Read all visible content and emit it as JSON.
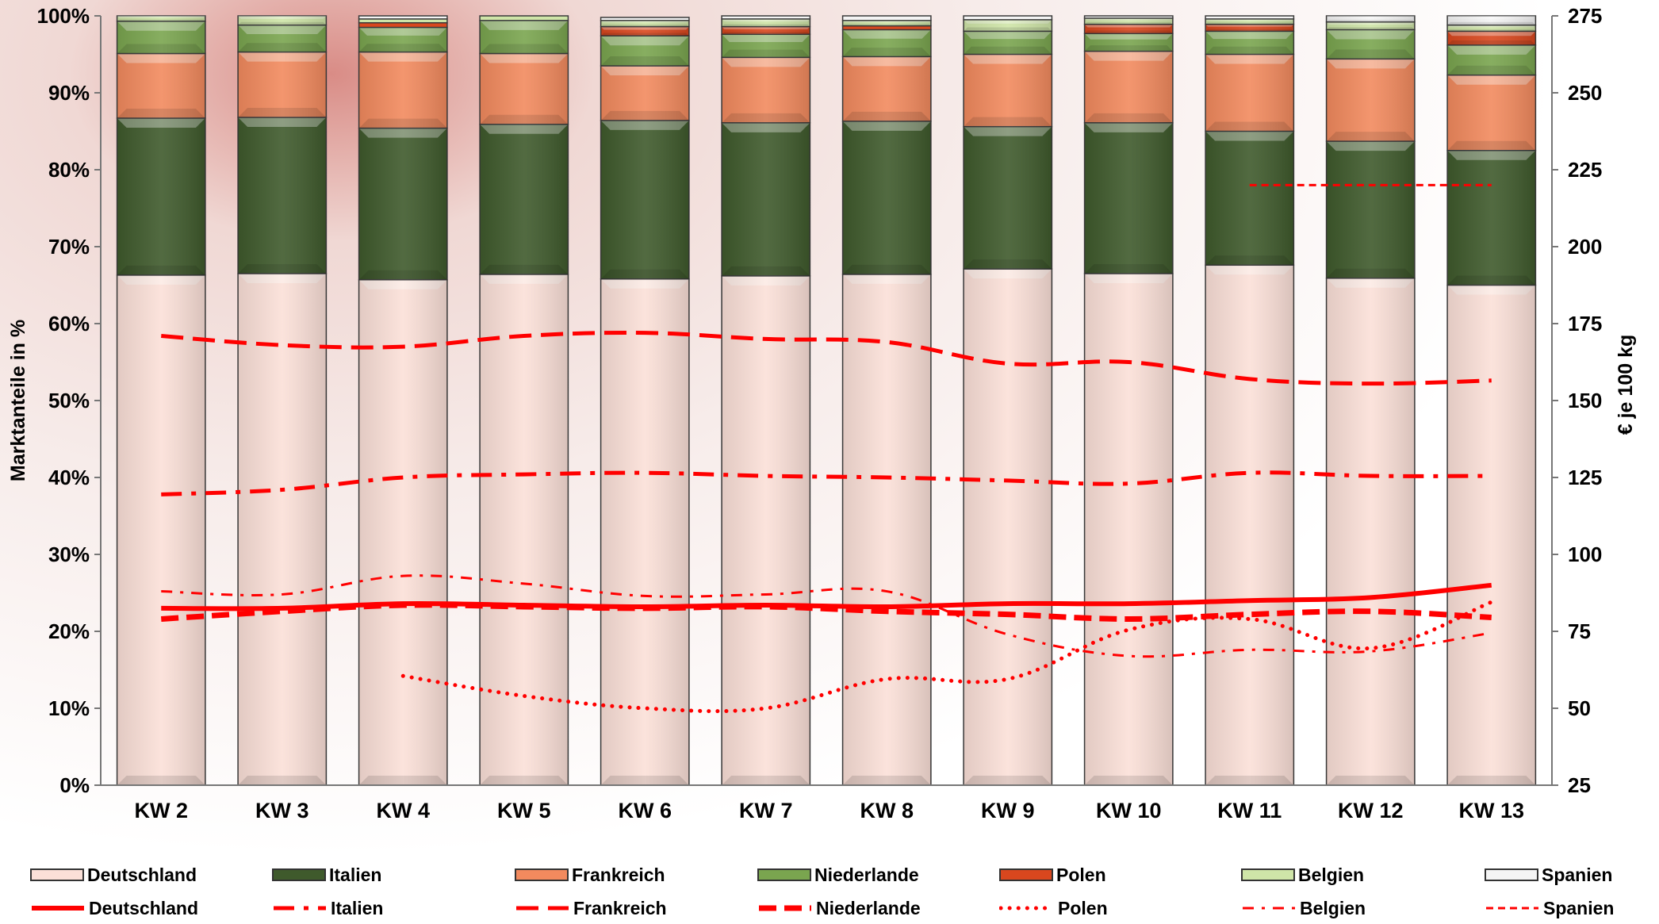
{
  "chart_data": {
    "type": "bar",
    "stacked": true,
    "percent_axis": true,
    "categories": [
      "KW 2",
      "KW 3",
      "KW 4",
      "KW 5",
      "KW 6",
      "KW 7",
      "KW 8",
      "KW 9",
      "KW 10",
      "KW 11",
      "KW 12",
      "KW 13"
    ],
    "ylabel_left": "Marktanteile in %",
    "ylabel_right": "€ je 100 kg",
    "yticks_left": [
      "0%",
      "10%",
      "20%",
      "30%",
      "40%",
      "50%",
      "60%",
      "70%",
      "80%",
      "90%",
      "100%"
    ],
    "yticks_right": [
      "25",
      "50",
      "75",
      "100",
      "125",
      "150",
      "175",
      "200",
      "225",
      "250",
      "275"
    ],
    "ylim_left": [
      0,
      100
    ],
    "ylim_right": [
      25,
      275
    ],
    "bar_series": [
      {
        "name": "Deutschland",
        "color": "#fbe0d8",
        "values": [
          66.3,
          66.5,
          65.7,
          66.4,
          65.8,
          66.2,
          66.4,
          67.1,
          66.5,
          67.6,
          65.9,
          65.0
        ]
      },
      {
        "name": "Italien",
        "color": "#3f5a2c",
        "values": [
          20.4,
          20.3,
          19.7,
          19.5,
          20.6,
          19.9,
          19.9,
          18.5,
          19.6,
          17.4,
          17.8,
          17.5
        ]
      },
      {
        "name": "Frankreich",
        "color": "#f28a5e",
        "values": [
          8.4,
          8.5,
          9.9,
          9.2,
          7.1,
          8.5,
          8.4,
          9.4,
          9.3,
          10.0,
          10.7,
          9.8
        ]
      },
      {
        "name": "Niederlande",
        "color": "#7aa54f",
        "values": [
          4.2,
          3.5,
          3.2,
          4.3,
          3.9,
          3.0,
          3.5,
          3.0,
          2.3,
          3.0,
          3.8,
          3.9
        ]
      },
      {
        "name": "Polen",
        "color": "#d9471e",
        "values": [
          0,
          0,
          0.6,
          0,
          1.2,
          1.0,
          0.5,
          0,
          1.2,
          0.9,
          0,
          1.8
        ]
      },
      {
        "name": "Belgien",
        "color": "#cfe5a8",
        "values": [
          0.7,
          1.2,
          0.5,
          0.6,
          0.8,
          1.0,
          0.7,
          1.5,
          0.8,
          0.7,
          1.0,
          0.8
        ]
      },
      {
        "name": "Spanien",
        "color": "#f4f4f4",
        "values": [
          0,
          0,
          0.4,
          0,
          0.4,
          0.4,
          0.6,
          0.5,
          0.3,
          0.4,
          0.8,
          1.2
        ]
      }
    ],
    "line_series": [
      {
        "name": "Deutschland",
        "dash": "solid",
        "width": 6,
        "values": [
          82.5,
          82.5,
          84,
          83.5,
          83,
          83.5,
          83,
          84,
          84,
          85,
          86,
          90
        ]
      },
      {
        "name": "Italien",
        "dash": "longdashdot",
        "width": 5,
        "values": [
          119.5,
          121,
          125,
          126,
          126.5,
          125.5,
          125,
          124,
          123,
          126.5,
          125.5,
          125.5
        ]
      },
      {
        "name": "Frankreich",
        "dash": "longdash",
        "width": 5,
        "values": [
          171,
          168,
          167.5,
          171,
          172,
          170,
          169,
          162,
          162.5,
          157,
          155.5,
          156.5
        ]
      },
      {
        "name": "Niederlande",
        "dash": "heavydash",
        "width": 7,
        "values": [
          79,
          81.5,
          83.5,
          83,
          82.5,
          83,
          81.5,
          80.5,
          79,
          80.5,
          81.5,
          79.5
        ]
      },
      {
        "name": "Polen",
        "dash": "dot",
        "width": 5,
        "values": [
          null,
          null,
          60.5,
          54,
          50,
          50,
          59.5,
          59.5,
          75.5,
          79,
          69.5,
          84.5
        ]
      },
      {
        "name": "Belgien",
        "dash": "dashdot",
        "width": 3,
        "values": [
          88,
          87,
          93,
          90.5,
          86.5,
          87,
          88,
          74,
          67,
          69,
          68.5,
          74.5
        ]
      },
      {
        "name": "Spanien",
        "dash": "shortdash",
        "width": 3,
        "values": [
          null,
          null,
          null,
          null,
          null,
          null,
          null,
          null,
          null,
          220,
          220,
          220
        ]
      }
    ]
  },
  "legend": {
    "bar_labels": [
      "Deutschland",
      "Italien",
      "Frankreich",
      "Niederlande",
      "Polen",
      "Belgien",
      "Spanien"
    ],
    "line_labels": [
      "Deutschland",
      "Italien",
      "Frankreich",
      "Niederlande",
      "Polen",
      "Belgien",
      "Spanien"
    ]
  }
}
